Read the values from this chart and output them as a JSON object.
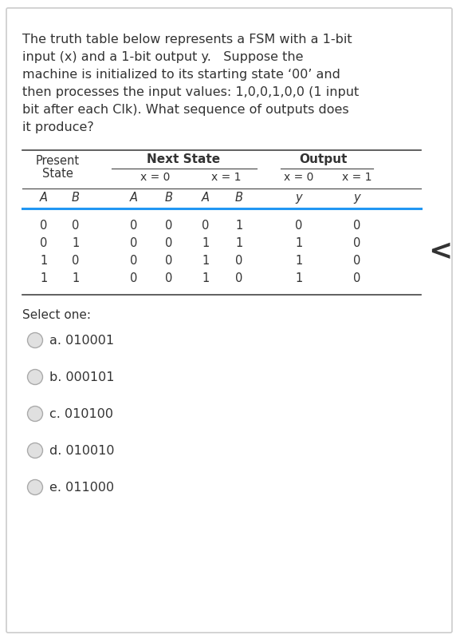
{
  "question_text": [
    "The truth table below represents a FSM with a 1-bit",
    "input (x) and a 1-bit output y.   Suppose the",
    "machine is initialized to its starting state ‘00’ and",
    "then processes the input values: 1,0,0,1,0,0 (1 input",
    "bit after each Clk). What sequence of outputs does",
    "it produce?"
  ],
  "table": {
    "rows": [
      [
        "0",
        "0",
        "0",
        "0",
        "0",
        "1",
        "0",
        "0"
      ],
      [
        "0",
        "1",
        "0",
        "0",
        "1",
        "1",
        "1",
        "0"
      ],
      [
        "1",
        "0",
        "0",
        "0",
        "1",
        "0",
        "1",
        "0"
      ],
      [
        "1",
        "1",
        "0",
        "0",
        "1",
        "0",
        "1",
        "0"
      ]
    ]
  },
  "select_one": "Select one:",
  "options": [
    "a. 010001",
    "b. 000101",
    "c. 010100",
    "d. 010010",
    "e. 011000"
  ],
  "bg_color": "#ffffff",
  "text_color": "#333333",
  "border_color": "#cccccc",
  "radio_color": "#bbbbbb",
  "table_line_color": "#444444",
  "header_line_color": "#2196F3"
}
